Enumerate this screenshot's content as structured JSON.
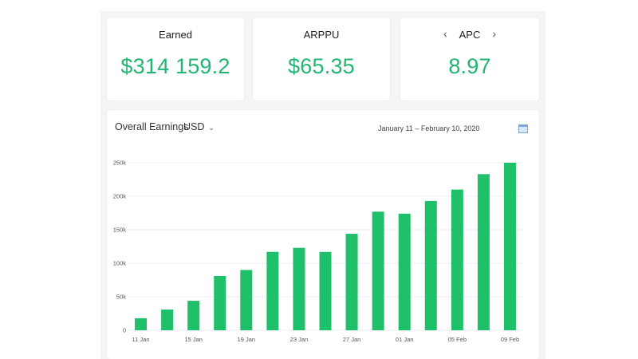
{
  "kpis": [
    {
      "label": "Earned",
      "value": "$314 159.2"
    },
    {
      "label": "ARPPU",
      "value": "$65.35"
    },
    {
      "label": "APC",
      "value": "8.97",
      "prev_icon": "chevron-left-icon",
      "next_icon": "chevron-right-icon"
    }
  ],
  "chart_header": {
    "title": "Overall Earnings",
    "currency": "USD",
    "date_range": "January 11 – February 10, 2020",
    "calendar_icon": "calendar-icon"
  },
  "colors": {
    "accent": "#22b573",
    "bar": "#1fc06a",
    "grid": "#e9ecef"
  },
  "chart_data": {
    "type": "bar",
    "title": "Overall Earnings",
    "xlabel": "",
    "ylabel": "",
    "ylim": [
      0,
      250000
    ],
    "yticks": [
      0,
      50000,
      100000,
      150000,
      200000,
      250000
    ],
    "ytick_labels": [
      "0",
      "50k",
      "100k",
      "150k",
      "200k",
      "250k"
    ],
    "xtick_labels": [
      "11 Jan",
      "15 Jan",
      "19 Jan",
      "23 Jan",
      "27 Jan",
      "01 Jan",
      "05 Feb",
      "09 Feb"
    ],
    "xtick_label_positions": [
      0,
      2,
      4,
      6,
      8,
      10,
      12,
      14
    ],
    "grid": true,
    "values": [
      18000,
      31000,
      44000,
      81000,
      90000,
      117000,
      123000,
      117000,
      144000,
      177000,
      174000,
      193000,
      210000,
      233000,
      250000
    ]
  }
}
